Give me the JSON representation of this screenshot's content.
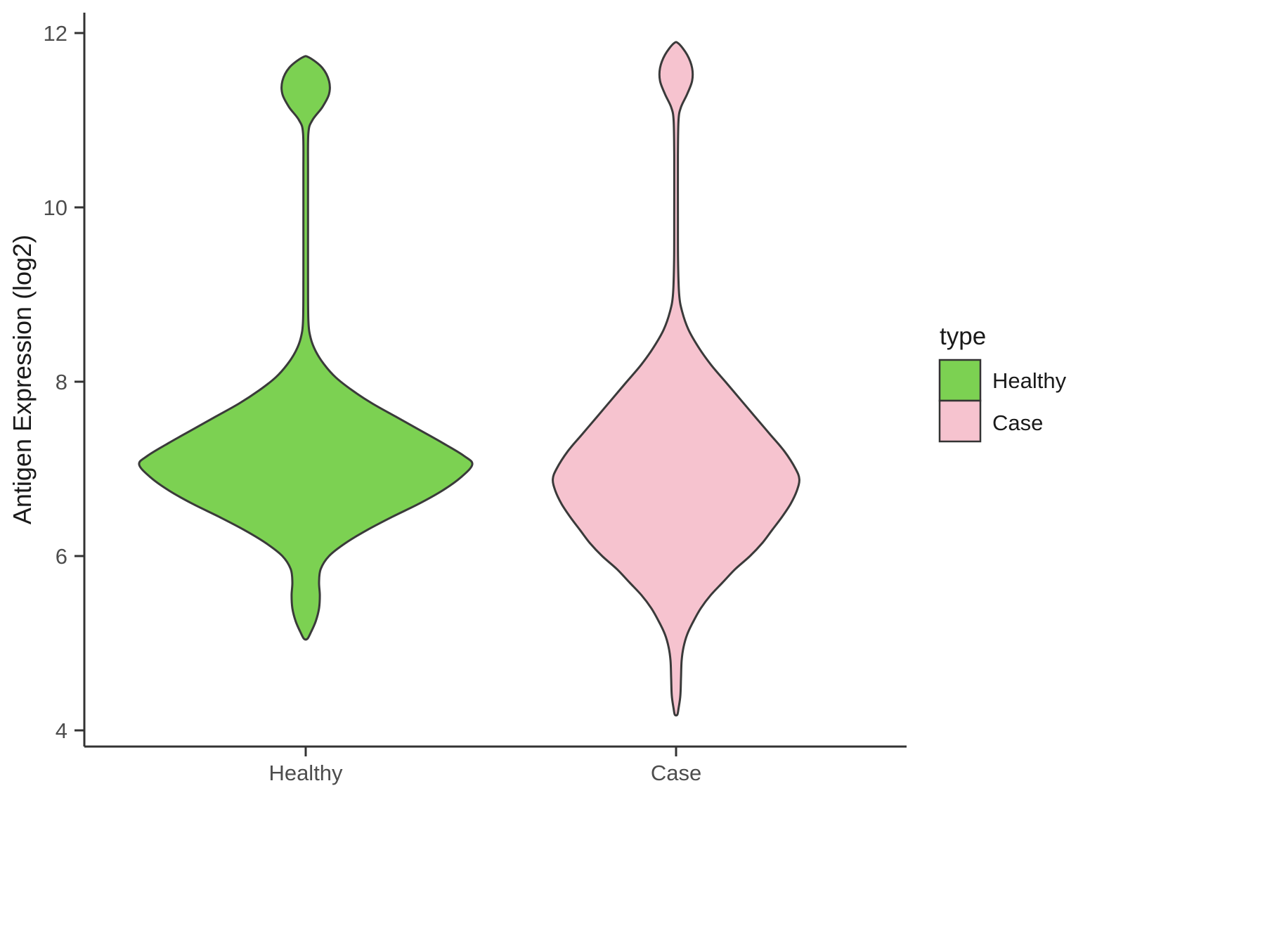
{
  "chart_data": {
    "type": "violin",
    "title": "",
    "xlabel": "",
    "ylabel": "Antigen Expression (log2)",
    "ylim": [
      4,
      12
    ],
    "yticks": [
      12,
      10,
      8,
      6,
      4
    ],
    "ytick_labels": [
      "12",
      "10",
      "8",
      "6",
      "4"
    ],
    "categories": [
      "Healthy",
      "Case"
    ],
    "grid": "off",
    "legend": {
      "title": "type",
      "position": "right",
      "entries": [
        {
          "label": "Healthy",
          "color": "#7CD152"
        },
        {
          "label": "Case",
          "color": "#F6C3CF"
        }
      ]
    },
    "series": [
      {
        "name": "Healthy",
        "color": "#7CD152",
        "outline": "#3A3A3A",
        "relative_width": 1.0,
        "profile_note": "pairs of [antigen_expression_log2, normalized_halfwidth]",
        "profile": [
          [
            11.72,
            0.02
          ],
          [
            11.6,
            0.1
          ],
          [
            11.45,
            0.14
          ],
          [
            11.3,
            0.14
          ],
          [
            11.15,
            0.1
          ],
          [
            11.0,
            0.04
          ],
          [
            10.85,
            0.016
          ],
          [
            10.4,
            0.014
          ],
          [
            9.8,
            0.014
          ],
          [
            9.2,
            0.014
          ],
          [
            8.7,
            0.016
          ],
          [
            8.5,
            0.03
          ],
          [
            8.35,
            0.06
          ],
          [
            8.2,
            0.11
          ],
          [
            8.05,
            0.18
          ],
          [
            7.9,
            0.28
          ],
          [
            7.75,
            0.4
          ],
          [
            7.6,
            0.54
          ],
          [
            7.45,
            0.68
          ],
          [
            7.3,
            0.82
          ],
          [
            7.15,
            0.95
          ],
          [
            7.05,
            1.0
          ],
          [
            6.9,
            0.93
          ],
          [
            6.75,
            0.82
          ],
          [
            6.6,
            0.68
          ],
          [
            6.45,
            0.52
          ],
          [
            6.3,
            0.37
          ],
          [
            6.15,
            0.24
          ],
          [
            6.0,
            0.14
          ],
          [
            5.85,
            0.09
          ],
          [
            5.7,
            0.08
          ],
          [
            5.55,
            0.085
          ],
          [
            5.4,
            0.08
          ],
          [
            5.25,
            0.06
          ],
          [
            5.12,
            0.03
          ],
          [
            5.05,
            0.01
          ]
        ]
      },
      {
        "name": "Case",
        "color": "#F6C3CF",
        "outline": "#3A3A3A",
        "relative_width": 0.74,
        "profile_note": "pairs of [antigen_expression_log2, normalized_halfwidth]",
        "profile": [
          [
            11.88,
            0.02
          ],
          [
            11.75,
            0.09
          ],
          [
            11.6,
            0.13
          ],
          [
            11.45,
            0.13
          ],
          [
            11.3,
            0.09
          ],
          [
            11.15,
            0.04
          ],
          [
            11.0,
            0.02
          ],
          [
            10.6,
            0.015
          ],
          [
            10.0,
            0.015
          ],
          [
            9.4,
            0.016
          ],
          [
            9.0,
            0.025
          ],
          [
            8.8,
            0.05
          ],
          [
            8.6,
            0.1
          ],
          [
            8.4,
            0.18
          ],
          [
            8.2,
            0.28
          ],
          [
            8.0,
            0.4
          ],
          [
            7.8,
            0.52
          ],
          [
            7.6,
            0.64
          ],
          [
            7.4,
            0.76
          ],
          [
            7.2,
            0.88
          ],
          [
            7.0,
            0.97
          ],
          [
            6.88,
            1.0
          ],
          [
            6.75,
            0.98
          ],
          [
            6.6,
            0.93
          ],
          [
            6.45,
            0.86
          ],
          [
            6.3,
            0.78
          ],
          [
            6.15,
            0.7
          ],
          [
            6.0,
            0.6
          ],
          [
            5.85,
            0.48
          ],
          [
            5.7,
            0.38
          ],
          [
            5.55,
            0.28
          ],
          [
            5.4,
            0.2
          ],
          [
            5.25,
            0.14
          ],
          [
            5.1,
            0.09
          ],
          [
            4.95,
            0.06
          ],
          [
            4.8,
            0.045
          ],
          [
            4.6,
            0.04
          ],
          [
            4.4,
            0.035
          ],
          [
            4.25,
            0.02
          ],
          [
            4.18,
            0.01
          ]
        ]
      }
    ]
  }
}
